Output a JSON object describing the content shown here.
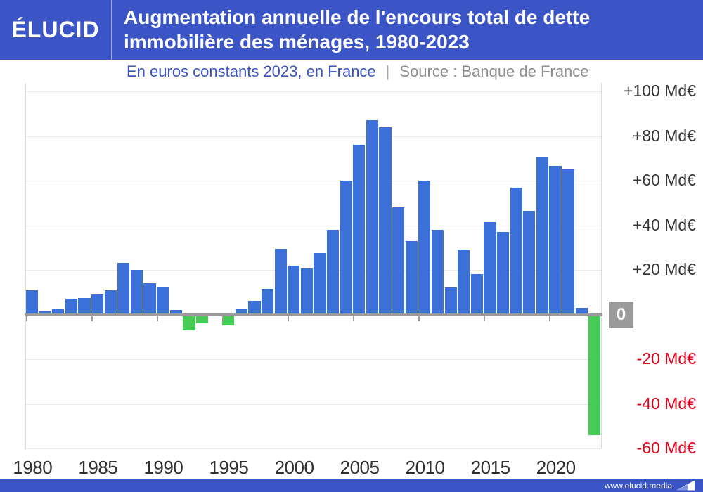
{
  "header": {
    "logo": "ÉLUCID",
    "title_line1": "Augmentation annuelle de l'encours total de dette",
    "title_line2": "immobilière des ménages, 1980-2023"
  },
  "subtitle": {
    "left": "En euros constants 2023, en France",
    "separator": "|",
    "source": "Source : Banque de France"
  },
  "footer": {
    "url": "www.elucid.media"
  },
  "colors": {
    "header_blue": "#3c55c6",
    "bar_positive": "#3a70d8",
    "bar_negative": "#46cb57",
    "negative_label_red": "#e40019",
    "subtitle_blue": "#3b52c4",
    "subtitle_gray": "#8d8d8d",
    "axis_gray": "#9b9b9b",
    "zero_badge_gray": "#9b9b9b"
  },
  "chart_data": {
    "type": "bar",
    "title": "Augmentation annuelle de l'encours total de dette immobilière des ménages, 1980-2023",
    "subtitle": "En euros constants 2023, en France",
    "source": "Source : Banque de France",
    "unit": "Md€",
    "ylim": [
      -60,
      100
    ],
    "grid": true,
    "years": [
      1980,
      1981,
      1982,
      1983,
      1984,
      1985,
      1986,
      1987,
      1988,
      1989,
      1990,
      1991,
      1992,
      1993,
      1994,
      1995,
      1996,
      1997,
      1998,
      1999,
      2000,
      2001,
      2002,
      2003,
      2004,
      2005,
      2006,
      2007,
      2008,
      2009,
      2010,
      2011,
      2012,
      2013,
      2014,
      2015,
      2016,
      2017,
      2018,
      2019,
      2020,
      2021,
      2022,
      2023
    ],
    "values": [
      11,
      1.5,
      2.5,
      7,
      7.5,
      9,
      11,
      23,
      20,
      14,
      12.5,
      2,
      -7,
      -4,
      0,
      -5,
      2.5,
      6,
      11.5,
      29.5,
      22,
      20.5,
      27.5,
      38,
      60,
      76,
      87,
      84,
      48,
      33,
      60,
      38,
      12,
      29,
      18,
      41.5,
      37,
      57,
      46.5,
      70.5,
      66.5,
      65,
      3,
      -54
    ],
    "yticks": [
      {
        "value": 100,
        "label": "+100 Md€",
        "type": "pos"
      },
      {
        "value": 80,
        "label": "+80 Md€",
        "type": "pos"
      },
      {
        "value": 60,
        "label": "+60 Md€",
        "type": "pos"
      },
      {
        "value": 40,
        "label": "+40 Md€",
        "type": "pos"
      },
      {
        "value": 20,
        "label": "+20 Md€",
        "type": "pos"
      },
      {
        "value": 0,
        "label": "0",
        "type": "zero"
      },
      {
        "value": -20,
        "label": "-20 Md€",
        "type": "neg"
      },
      {
        "value": -40,
        "label": "-40 Md€",
        "type": "neg"
      },
      {
        "value": -60,
        "label": "-60 Md€",
        "type": "neg"
      }
    ],
    "xticks": [
      "1980",
      "1985",
      "1990",
      "1995",
      "2000",
      "2005",
      "2010",
      "2015",
      "2020"
    ]
  }
}
